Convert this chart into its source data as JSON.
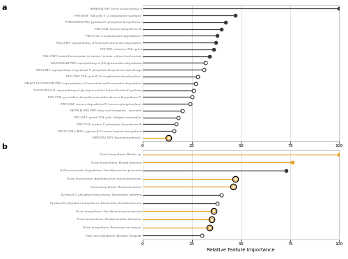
{
  "panel_a": {
    "labels": [
      "HEMESYN-PWY: heme b biosynthesis II",
      "PWY-6969: TCA cycle V (2-oxoglutarate synthase)",
      "PYRIDOXSYN-PWY: pyridoxal 5'-phosphate biosynthesis I",
      "PWY-5104: Leucine biosynthesis IV",
      "PWY-5130: 2-oxobutanoate degradation I",
      "P441-PWY: superpathway of N-acetylneuraminate degradation",
      "P23-PWY: reductive TCA cycle I",
      "P461-PWY: hexitol fermentation to lactate, formate, ethanol and acetate",
      "GLUCUROCAT-PWY: superpathway of β-D-glucuronides degradation",
      "PWY0-845: superpathway of pyridoxal 5'-phosphate biosynthesis and salvage",
      "P105-PWY: TCA cycle IV (2-oxoglutarate decarboxylase)",
      "GALACT-GLUCUROCAT-PWY: superpathway of hexuronide and hexuronate degradation",
      "GLYCOLYSIS-E-D: superpathway of glycolysis and the Entner-Doudoroff pathway",
      "PWY-7198: pyrimidine deoxyribonucleotides de novo biosynthesis IV",
      "PWY-5384: sucrose degradation IV (sucrose phosphorylase)",
      "FASYN-ELONG-PWY: fatty acid elongation - saturated",
      "PWY-6913: partial TCA cycle (obligate autotrophs)",
      "PWY-7234: inosine-5'-phosphate biosynthesis III",
      "PWY10-1241: ADP-L-glycero-β-D-manno-heptose biosynthesis",
      "RIBOSYN2-PWY: flavin biosynthesis I"
    ],
    "values": [
      100,
      47,
      42,
      40,
      38,
      37,
      36,
      34,
      32,
      31,
      28,
      27,
      26,
      25,
      24,
      20,
      18,
      17,
      16,
      13
    ],
    "colors": [
      "#3a3a3a",
      "#3a3a3a",
      "#3a3a3a",
      "#3a3a3a",
      "#3a3a3a",
      "#3a3a3a",
      "#3a3a3a",
      "#3a3a3a",
      "#3a3a3a",
      "#3a3a3a",
      "#3a3a3a",
      "#3a3a3a",
      "#3a3a3a",
      "#3a3a3a",
      "#3a3a3a",
      "#3a3a3a",
      "#3a3a3a",
      "#3a3a3a",
      "#3a3a3a",
      "#e8a020"
    ],
    "open_circle": [
      false,
      false,
      false,
      false,
      false,
      false,
      false,
      false,
      true,
      true,
      true,
      true,
      true,
      true,
      true,
      true,
      true,
      true,
      true,
      true
    ],
    "black_ring_idx": [
      19
    ],
    "xlim": [
      0,
      100
    ],
    "xticks": [
      0,
      25,
      50,
      75,
      100
    ]
  },
  "panel_b": {
    "labels": [
      "Flavin biosynthesis: Blautia sp.",
      "Flavin biosynthesis: Blautia wexlerae",
      "β-Glucoronosides degradation: Faecalibacterium prausnitzii",
      "Flavin biosynthesis: Agathobaculum butyriciproducens",
      "Flavin biosynthesis: Roseburia faeces",
      "Pyridoxal 5'-phosphate biosynthesis: Bacteroides uniformis",
      "Pyridoxal 5'-phosphate biosynthesis: Bacteroides thetaiotaomicron",
      "Flavin biosynthesis: Faecalibacterium prausnitzii",
      "Flavin biosynthesis: Parabacteroides distasonis",
      "Flavin biosynthesis: Ruminococcus torques",
      "Fatty acid elongation: Alistipes finegoldii"
    ],
    "values": [
      100,
      76,
      73,
      47,
      46,
      40,
      38,
      36,
      35,
      34,
      30
    ],
    "colors": [
      "#e8a020",
      "#e8a020",
      "#3a3a3a",
      "#e8a020",
      "#e8a020",
      "#3a3a3a",
      "#3a3a3a",
      "#e8a020",
      "#e8a020",
      "#e8a020",
      "#3a3a3a"
    ],
    "open_circle": [
      false,
      false,
      false,
      true,
      true,
      true,
      true,
      true,
      true,
      true,
      true
    ],
    "black_ring_idx": [
      3,
      4,
      7,
      8,
      9
    ],
    "xlim": [
      0,
      100
    ],
    "xticks": [
      0,
      25,
      50,
      75,
      100
    ],
    "xlabel": "Relative feature importance"
  },
  "label_color": "#666666",
  "grid_color": "#cccccc",
  "spine_color": "#aaaaaa",
  "label_a": "a",
  "label_b": "b"
}
